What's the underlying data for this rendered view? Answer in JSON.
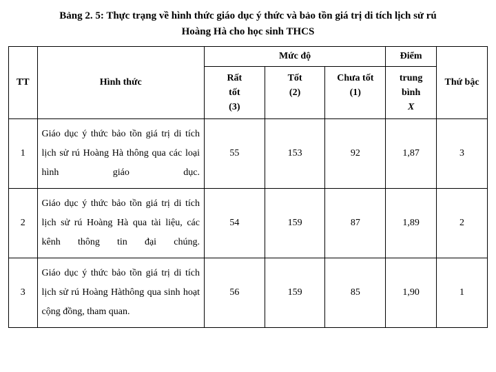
{
  "title_line1": "Bảng 2. 5: Thực trạng về hình thức giáo dục ý thức và bảo tồn  giá trị di tích lịch sử rú",
  "title_line2": "Hoàng Hà cho học sinh THCS",
  "header": {
    "tt": "TT",
    "hinh_thuc": "Hình thức",
    "muc_do": "Mức độ",
    "rat_tot_1": "Rất",
    "rat_tot_2": "tốt",
    "rat_tot_3": "(3)",
    "tot_1": "Tốt",
    "tot_2": "(2)",
    "chua_tot_1": "Chưa tốt",
    "chua_tot_2": "(1)",
    "diem_1": "Điểm",
    "diem_2": "trung",
    "diem_3": "bình",
    "diem_x": "X",
    "thu_bac": "Thứ bậc"
  },
  "rows": [
    {
      "tt": "1",
      "desc": "Giáo dục ý thức bảo tồn giá trị di tích lịch sử rú Hoàng Hà thông qua các loại hình giáo dục.",
      "rat_tot": "55",
      "tot": "153",
      "chua_tot": "92",
      "diem": "1,87",
      "thu_bac": "3"
    },
    {
      "tt": "2",
      "desc": "Giáo dục ý thức bảo tồn giá trị di tích lịch sử rú Hoàng Hà qua tài liệu, các kênh thông tin đại chúng.",
      "rat_tot": "54",
      "tot": "159",
      "chua_tot": "87",
      "diem": "1,89",
      "thu_bac": "2"
    },
    {
      "tt": "3",
      "desc": "Giáo dục ý thức bảo tồn giá trị di tích lịch sử rú Hoàng Hàthông qua sinh hoạt cộng đồng, tham quan.",
      "rat_tot": "56",
      "tot": "159",
      "chua_tot": "85",
      "diem": "1,90",
      "thu_bac": "1"
    }
  ]
}
